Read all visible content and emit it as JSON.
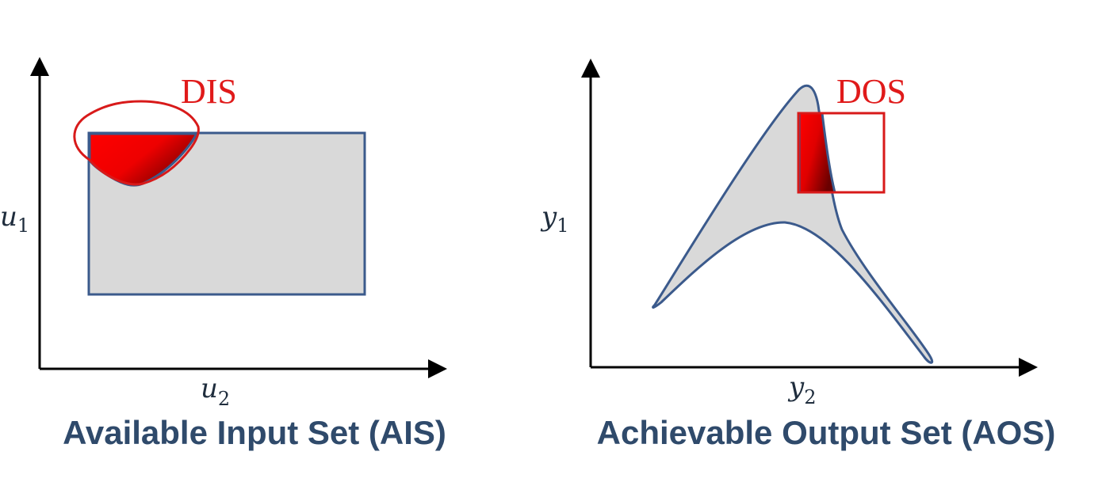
{
  "left_panel": {
    "caption": "Available Input Set (AIS)",
    "region_tag": "DIS",
    "y_axis": {
      "var": "u",
      "sub": "1"
    },
    "x_axis": {
      "var": "u",
      "sub": "2"
    }
  },
  "right_panel": {
    "caption": "Achievable Output Set (AOS)",
    "region_tag": "DOS",
    "y_axis": {
      "var": "y",
      "sub": "1"
    },
    "x_axis": {
      "var": "y",
      "sub": "2"
    }
  },
  "colors": {
    "set_fill": "#d9d9d9",
    "set_stroke": "#3b5a8c",
    "desired_stroke": "#d81a1a",
    "intersection_red": "#ff0000",
    "intersection_dark": "#7a0000",
    "axis": "#000000",
    "caption": "#2f4a6b"
  }
}
